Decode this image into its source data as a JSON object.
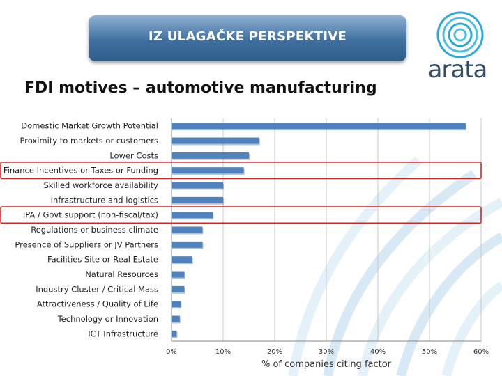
{
  "header": {
    "banner_text": "IZ ULAGAČKE PERSPEKTIVE",
    "subtitle": "FDI motives – automotive manufacturing",
    "logo_text": "arata"
  },
  "colors": {
    "bar": "#4f81bd",
    "highlight": "#e02020",
    "banner": "#3f6f9f",
    "deco": "#b8d8ec"
  },
  "highlighted_categories": [
    "Finance Incentives or Taxes or Funding",
    "IPA / Govt support (non-fiscal/tax)"
  ],
  "chart_data": {
    "type": "bar",
    "orientation": "horizontal",
    "categories": [
      "Domestic Market Growth Potential",
      "Proximity to markets or customers",
      "Lower Costs",
      "Finance Incentives or Taxes or Funding",
      "Skilled workforce availability",
      "Infrastructure and logistics",
      "IPA / Govt support (non-fiscal/tax)",
      "Regulations or business climate",
      "Presence of Suppliers or JV Partners",
      "Facilities Site or Real Estate",
      "Natural Resources",
      "Industry Cluster / Critical Mass",
      "Attractiveness / Quality of Life",
      "Technology or Innovation",
      "ICT Infrastructure"
    ],
    "values": [
      0.57,
      0.17,
      0.15,
      0.14,
      0.1,
      0.1,
      0.08,
      0.06,
      0.06,
      0.04,
      0.025,
      0.025,
      0.018,
      0.016,
      0.01
    ],
    "xlabel": "% of companies citing factor",
    "xlim": [
      0,
      0.6
    ],
    "xticks": [
      0,
      0.1,
      0.2,
      0.3,
      0.4,
      0.5,
      0.6
    ],
    "xtick_labels": [
      "0%",
      "10%",
      "20%",
      "30%",
      "40%",
      "50%",
      "60%"
    ],
    "grid": true
  }
}
